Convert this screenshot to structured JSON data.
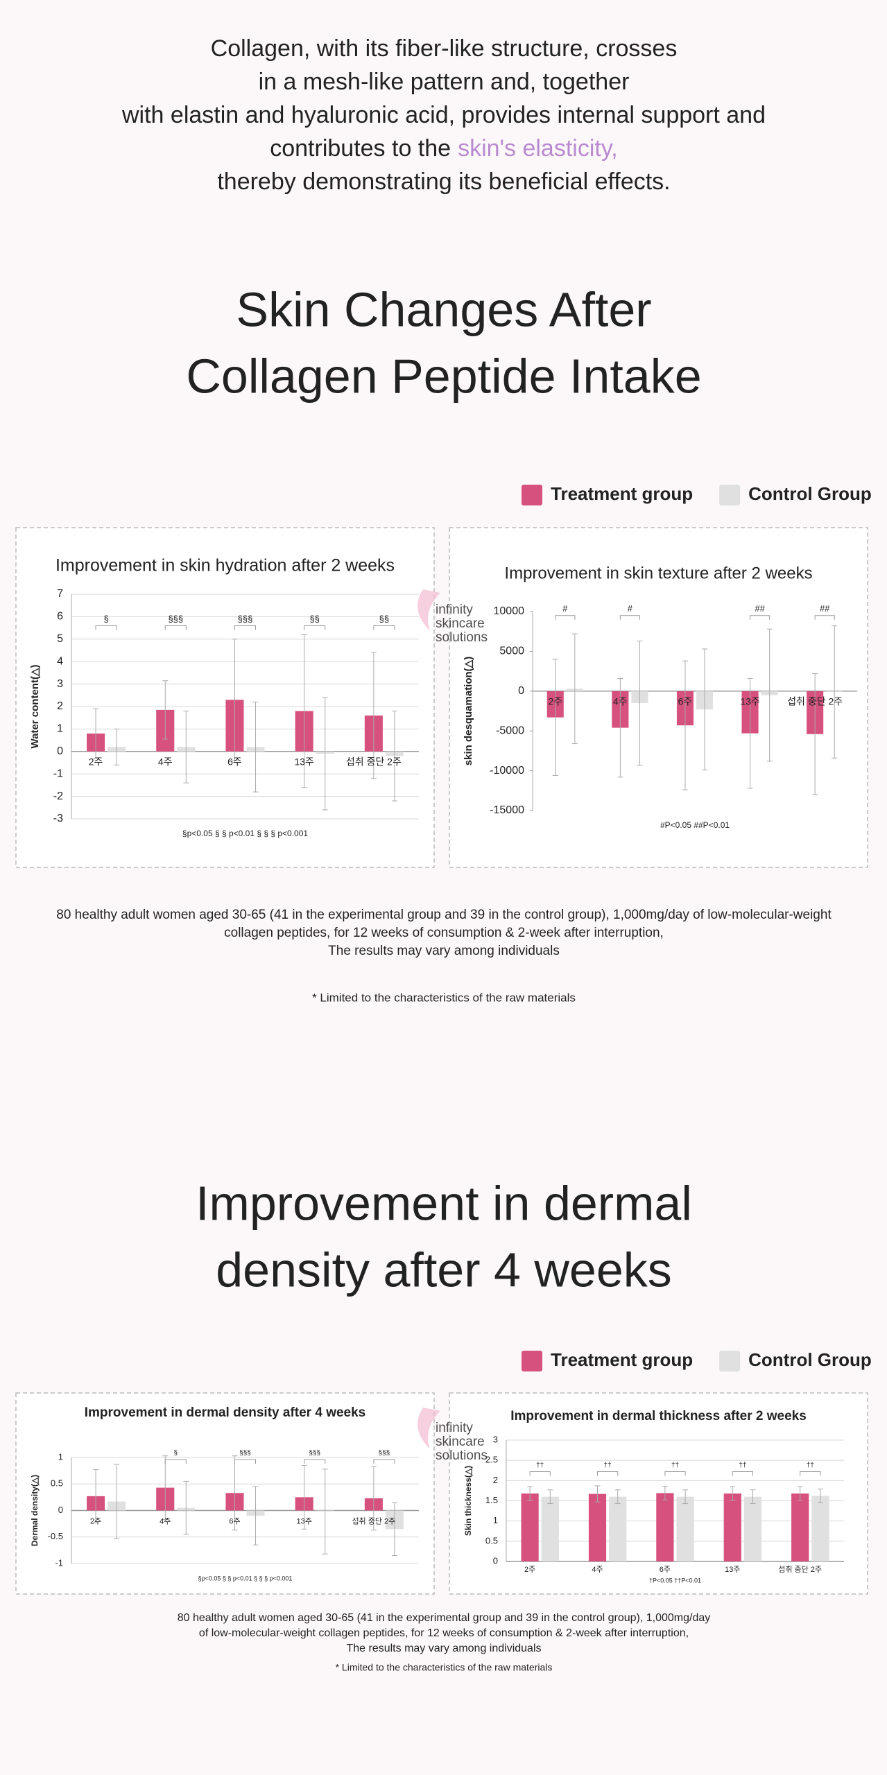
{
  "intro": {
    "lines": [
      "Collagen, with its fiber-like structure, crosses",
      "in a mesh-like pattern and, together",
      "with elastin and hyaluronic acid, provides internal support and",
      "contributes to the"
    ],
    "highlight": [
      "skin's elasticity,",
      "thereby demonstrating its beneficial effects."
    ]
  },
  "sections": [
    {
      "heading": [
        "Skin Changes After",
        "Collagen Peptide Intake"
      ],
      "notes": [
        "80 healthy adult women aged 30-65 (41 in the experimental group and 39 in the control group), 1,000mg/day of low-molecular-weight",
        "collagen peptides, for 12 weeks of consumption & 2-week after interruption,",
        "The results may vary among individuals"
      ],
      "limited": "* Limited to the characteristics of the raw materials"
    },
    {
      "heading": [
        "Improvement in dermal",
        "density after 4 weeks"
      ],
      "notes": [
        "80 healthy adult women aged 30-65 (41 in the experimental group and 39 in the control group), 1,000mg/day",
        "of low-molecular-weight collagen peptides, for 12 weeks of consumption & 2-week after interruption,",
        "The results may vary among individuals"
      ],
      "limited": "* Limited to the characteristics of the raw materials"
    }
  ],
  "watermark": [
    "infinity",
    "skincare",
    "solutions"
  ],
  "chart_data": [
    {
      "type": "bar",
      "title": "Improvement in skin hydration after 2 weeks",
      "y_label": "Water content(△)",
      "categories": [
        "2주",
        "4주",
        "6주",
        "13주",
        "섭취 중단 2주"
      ],
      "series": [
        {
          "name": "Treatment group",
          "color": "#d6517d",
          "values": [
            0.8,
            1.85,
            2.3,
            1.8,
            1.6
          ],
          "errors": [
            1.1,
            1.3,
            2.7,
            3.4,
            2.8
          ]
        },
        {
          "name": "Control Group",
          "color": "#e0e0e0",
          "values": [
            0.2,
            0.2,
            0.2,
            -0.1,
            -0.2
          ],
          "errors": [
            0.8,
            1.6,
            2.0,
            2.5,
            2.0
          ]
        }
      ],
      "significance": [
        "§",
        "§§§",
        "§§§",
        "§§",
        "§§"
      ],
      "footnote": "§p<0.05 § § p<0.01 § § § p<0.001",
      "ylim": [
        -3,
        7
      ],
      "yticks": [
        -3,
        -2,
        -1,
        0,
        1,
        2,
        3,
        4,
        5,
        6,
        7
      ],
      "grid": true
    },
    {
      "type": "bar",
      "title": "Improvement in skin texture after 2 weeks",
      "y_label": "skin desquamation(△)",
      "categories": [
        "2주",
        "4주",
        "6주",
        "13주",
        "섭취 중단 2주"
      ],
      "series": [
        {
          "color": "#d6517d",
          "values": [
            -3300,
            -4600,
            -4300,
            -5300,
            -5400
          ],
          "errors": [
            7300,
            6200,
            8100,
            6900,
            7600
          ]
        },
        {
          "color": "#e0e0e0",
          "values": [
            300,
            -1500,
            -2300,
            -500,
            -100
          ],
          "errors": [
            6900,
            7800,
            7600,
            8300,
            8300
          ]
        }
      ],
      "significance": [
        "#",
        "#",
        "",
        "##",
        "##"
      ],
      "footnote": "#P<0.05 ##P<0.01",
      "ylim": [
        -15000,
        10000
      ],
      "yticks": [
        -15000,
        -10000,
        -5000,
        0,
        5000,
        10000
      ],
      "grid": false
    },
    {
      "type": "bar",
      "title": "Improvement in dermal density after 4 weeks",
      "y_label": "Dermal density(△)",
      "categories": [
        "2주",
        "4주",
        "6주",
        "13주",
        "섭취 중단 2주"
      ],
      "series": [
        {
          "name": "Treatment group",
          "color": "#d6517d",
          "values": [
            0.27,
            0.43,
            0.33,
            0.25,
            0.23
          ],
          "errors": [
            0.5,
            0.6,
            0.7,
            0.6,
            0.6
          ]
        },
        {
          "name": "Control Group",
          "color": "#e0e0e0",
          "values": [
            0.17,
            0.05,
            -0.1,
            -0.02,
            -0.35
          ],
          "errors": [
            0.7,
            0.5,
            0.55,
            0.8,
            0.5
          ]
        }
      ],
      "significance": [
        "",
        "§",
        "§§§",
        "§§§",
        "§§§"
      ],
      "footnote": "§p<0.05 § § p<0.01 § § § p<0.001",
      "ylim": [
        -1,
        1
      ],
      "yticks": [
        -1,
        -0.5,
        0,
        0.5,
        1
      ],
      "grid": true
    },
    {
      "type": "bar",
      "title": "Improvement in dermal thickness after 2 weeks",
      "y_label": "Skin thickness(△)",
      "categories": [
        "2주",
        "4주",
        "6주",
        "13주",
        "섭취 중단 2주"
      ],
      "series": [
        {
          "color": "#d6517d",
          "values": [
            1.68,
            1.67,
            1.69,
            1.68,
            1.68
          ],
          "errors": [
            0.17,
            0.2,
            0.17,
            0.17,
            0.17
          ]
        },
        {
          "color": "#e0e0e0",
          "values": [
            1.6,
            1.6,
            1.6,
            1.6,
            1.62
          ],
          "errors": [
            0.17,
            0.17,
            0.17,
            0.17,
            0.17
          ]
        }
      ],
      "significance": [
        "††",
        "††",
        "††",
        "††",
        "††"
      ],
      "footnote": "†P<0.05 ††P<0.01",
      "ylim": [
        0,
        3
      ],
      "yticks": [
        0,
        0.5,
        1,
        1.5,
        2,
        2.5,
        3
      ],
      "grid": true
    }
  ]
}
